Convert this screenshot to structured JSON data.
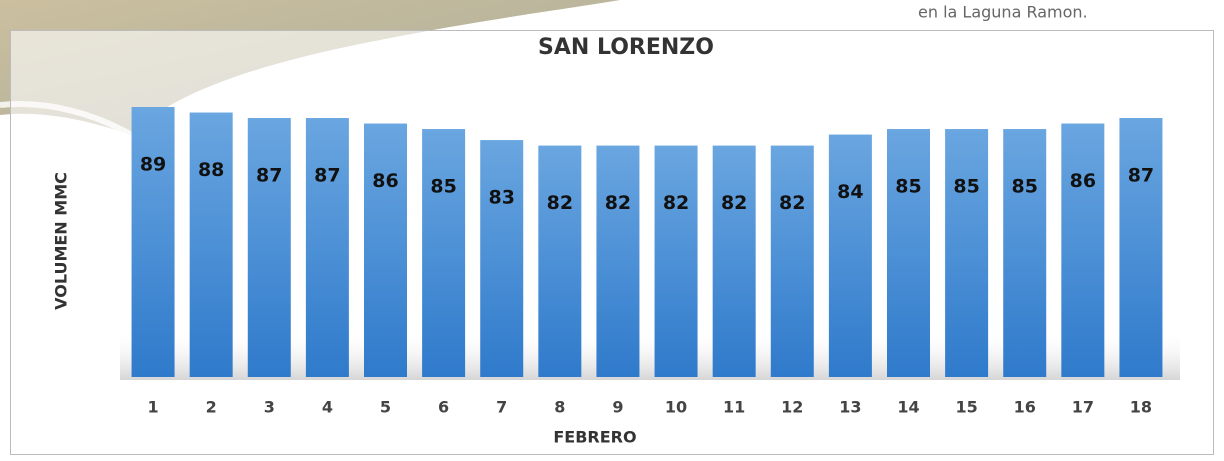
{
  "chart_data": {
    "type": "bar",
    "title": "SAN LORENZO",
    "annotation": "en la Laguna Ramon.",
    "x_label": "FEBRERO",
    "y_label": "VOLUMEN MMC",
    "categories": [
      "1",
      "2",
      "3",
      "4",
      "5",
      "6",
      "7",
      "8",
      "9",
      "10",
      "11",
      "12",
      "13",
      "14",
      "15",
      "16",
      "17",
      "18"
    ],
    "values": [
      89,
      88,
      87,
      87,
      86,
      85,
      83,
      82,
      82,
      82,
      82,
      82,
      84,
      85,
      85,
      85,
      86,
      87
    ],
    "color": "#4a8fd6",
    "ylim": [
      40,
      90
    ]
  }
}
